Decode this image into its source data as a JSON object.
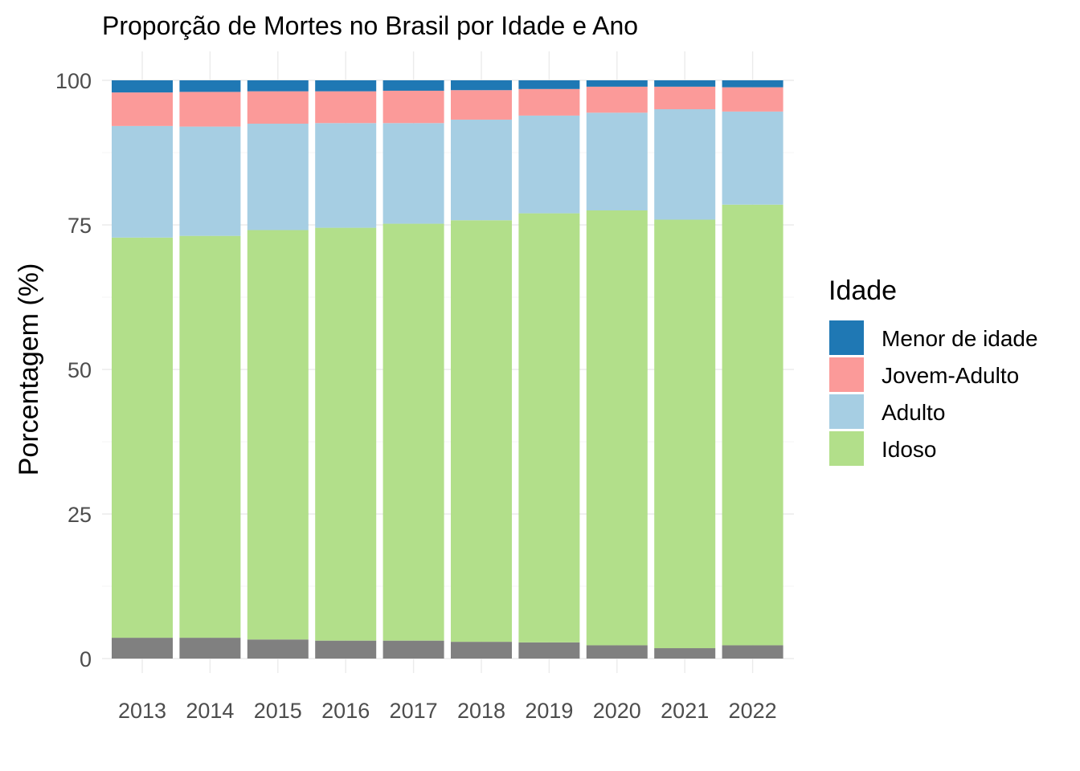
{
  "chart_data": {
    "type": "bar",
    "stacked": true,
    "title": "Proporção de Mortes no Brasil por Idade e Ano",
    "xlabel": "",
    "ylabel": "Porcentagem (%)",
    "ylim": [
      0,
      100
    ],
    "y_ticks": [
      0,
      25,
      50,
      75,
      100
    ],
    "grid": true,
    "legend": {
      "title": "Idade",
      "placement": "right",
      "entries": [
        "Menor de idade",
        "Jovem-Adulto",
        "Adulto",
        "Idoso"
      ]
    },
    "categories": [
      "2013",
      "2014",
      "2015",
      "2016",
      "2017",
      "2018",
      "2019",
      "2020",
      "2021",
      "2022"
    ],
    "series": [
      {
        "name": "",
        "color": "#808080",
        "values": [
          3.6,
          3.6,
          3.3,
          3.1,
          3.1,
          2.9,
          2.8,
          2.3,
          1.8,
          2.3
        ]
      },
      {
        "name": "Idoso",
        "color": "#b2df8a",
        "values": [
          69.2,
          69.5,
          70.8,
          71.4,
          72.1,
          72.9,
          74.2,
          75.2,
          74.1,
          76.2
        ]
      },
      {
        "name": "Adulto",
        "color": "#a6cee3",
        "values": [
          19.3,
          18.9,
          18.4,
          18.1,
          17.4,
          17.4,
          16.9,
          16.9,
          19.1,
          16.1
        ]
      },
      {
        "name": "Jovem-Adulto",
        "color": "#fb9a99",
        "values": [
          5.8,
          6.0,
          5.6,
          5.5,
          5.6,
          5.1,
          4.6,
          4.5,
          3.9,
          4.2
        ]
      },
      {
        "name": "Menor de idade",
        "color": "#1f78b4",
        "values": [
          2.1,
          2.0,
          1.9,
          1.9,
          1.8,
          1.7,
          1.5,
          1.1,
          1.1,
          1.2
        ]
      }
    ]
  }
}
